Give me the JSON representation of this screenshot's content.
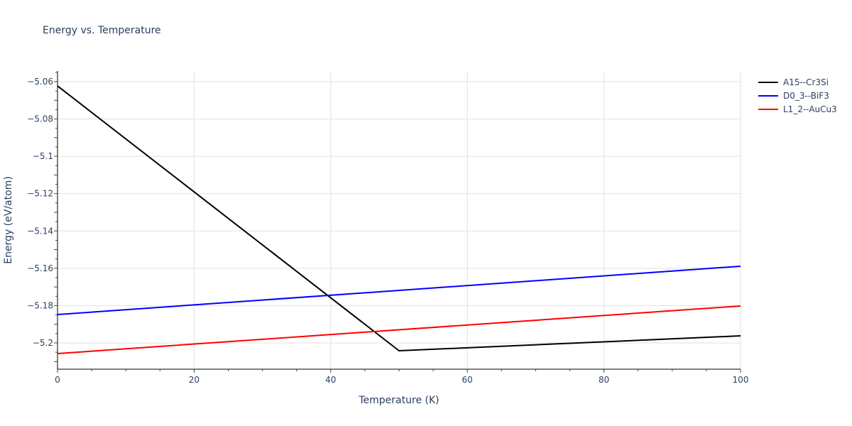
{
  "chart_data": {
    "type": "line",
    "title": "Energy vs. Temperature",
    "xlabel": "Temperature (K)",
    "ylabel": "Energy (eV/atom)",
    "xlim": [
      0,
      100
    ],
    "ylim": [
      -5.214,
      -5.054
    ],
    "x_ticks": [
      0,
      20,
      40,
      60,
      80,
      100
    ],
    "y_ticks": [
      -5.06,
      -5.08,
      -5.1,
      -5.12,
      -5.14,
      -5.16,
      -5.18,
      -5.2
    ],
    "y_tick_labels": [
      "−5.06",
      "−5.08",
      "−5.1",
      "−5.12",
      "−5.14",
      "−5.16",
      "−5.18",
      "−5.2"
    ],
    "grid": true,
    "legend_position": "right-top",
    "series": [
      {
        "name": "A15--Cr3Si",
        "color": "#000000",
        "x": [
          0,
          50,
          100
        ],
        "y": [
          -5.0623,
          -5.2042,
          -5.1962
        ]
      },
      {
        "name": "D0_3--BiF3",
        "color": "#0000ff",
        "x": [
          0,
          100
        ],
        "y": [
          -5.1848,
          -5.1589
        ]
      },
      {
        "name": "L1_2--AuCu3",
        "color": "#ff0000",
        "x": [
          0,
          100
        ],
        "y": [
          -5.2057,
          -5.1802
        ]
      }
    ]
  }
}
